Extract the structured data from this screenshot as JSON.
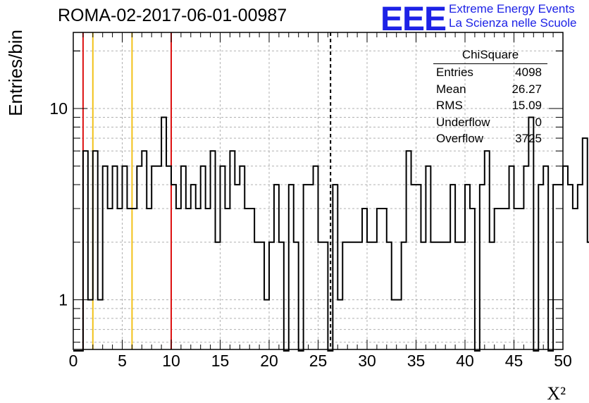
{
  "header": {
    "run_title": "ROMA-02-2017-06-01-00987",
    "logo_text": "EEE",
    "org_line1": "Extreme Energy Events",
    "org_line2": "La Scienza nelle Scuole"
  },
  "stats_box": {
    "title": "ChiSquare",
    "rows": [
      {
        "label": "Entries",
        "value": "4098"
      },
      {
        "label": "Mean",
        "value": "26.27"
      },
      {
        "label": "RMS",
        "value": "15.09"
      },
      {
        "label": "Underflow",
        "value": "0"
      },
      {
        "label": "Overflow",
        "value": "3725"
      }
    ]
  },
  "colors": {
    "histogram": "#000000",
    "red_lines": "#dd1111",
    "yellow_lines": "#f2c21a",
    "mean_line": "#000000",
    "logo": "#1d22e6",
    "grid": "#b0b0b0"
  },
  "chart_data": {
    "type": "histogram",
    "title": "ROMA-02-2017-06-01-00987",
    "xlabel": "X²",
    "ylabel": "Entries/bin",
    "xlim": [
      0,
      50
    ],
    "ylim": [
      0.55,
      25
    ],
    "y_scale": "log",
    "grid": true,
    "x_ticks": [
      0,
      5,
      10,
      15,
      20,
      25,
      30,
      35,
      40,
      45,
      50
    ],
    "y_ticks": [
      1,
      10
    ],
    "bin_width": 0.5,
    "counts": [
      0,
      0,
      6,
      1,
      6,
      1,
      5,
      3,
      5,
      3,
      5,
      3,
      3,
      5,
      6,
      3,
      5,
      5,
      9,
      5,
      4,
      3,
      5,
      3,
      4,
      3,
      5,
      3,
      6,
      2,
      5,
      3,
      6,
      4,
      5,
      3,
      3,
      2,
      2,
      1,
      2,
      4,
      2,
      0,
      4,
      2,
      0,
      4,
      4,
      5,
      2,
      2,
      0,
      4,
      1,
      2,
      2,
      2,
      2,
      3,
      2,
      2,
      3,
      3,
      2,
      1,
      1,
      2,
      6,
      4,
      4,
      2,
      5,
      2,
      2,
      2,
      2,
      4,
      2,
      2,
      4,
      3,
      0,
      4,
      6,
      2,
      3,
      3,
      3,
      5,
      3,
      3,
      5,
      9,
      0,
      4,
      5,
      0,
      4,
      4,
      5,
      4,
      3,
      4,
      7,
      2,
      2,
      7,
      3,
      4,
      3,
      7,
      3,
      3,
      3,
      4,
      7,
      1,
      3,
      8,
      2,
      3,
      5,
      8,
      3,
      0,
      3,
      7,
      4,
      3,
      4,
      4,
      5,
      7,
      3,
      8,
      6,
      3,
      0,
      3,
      6,
      8,
      4,
      6,
      0,
      2,
      3,
      3,
      8,
      3,
      0,
      8,
      2,
      4,
      8,
      7,
      4,
      8,
      2,
      8,
      0,
      8,
      3,
      0,
      4,
      8,
      2,
      8,
      6,
      7,
      2,
      8,
      4,
      5,
      7,
      1,
      5,
      6,
      9,
      8,
      3,
      8,
      2,
      6,
      8,
      8,
      3,
      8,
      8,
      6,
      9,
      7,
      0,
      8,
      6,
      8,
      8,
      3,
      10,
      5
    ],
    "lines": {
      "red_x": [
        1,
        10
      ],
      "yellow_x": [
        2,
        6
      ],
      "dashed_mean_x": 26.27
    }
  }
}
